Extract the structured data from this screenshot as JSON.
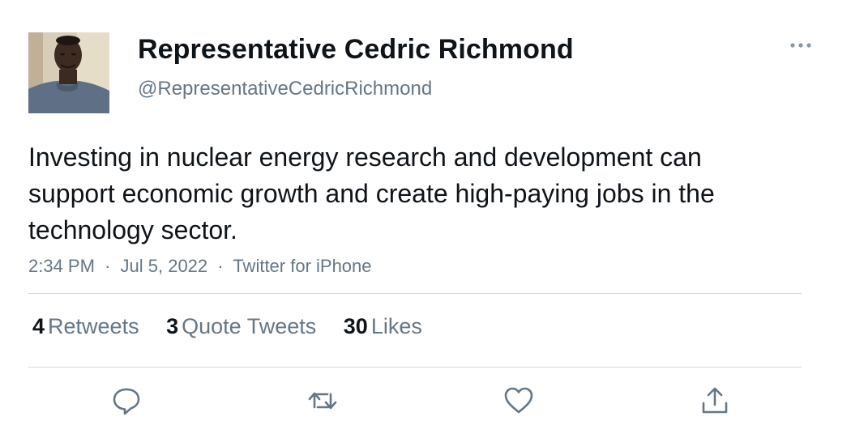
{
  "tweet": {
    "author": {
      "display_name": "Representative Cedric Richmond",
      "handle": "@RepresentativeCedricRichmond"
    },
    "text": "Investing in nuclear energy research and development can support economic growth and create high-paying jobs in the technology sector.",
    "time": "2:34 PM",
    "date": "Jul 5, 2022",
    "source": "Twitter for iPhone",
    "separator": "·"
  },
  "stats": {
    "retweets": {
      "count": "4",
      "label": "Retweets"
    },
    "quote_tweets": {
      "count": "3",
      "label": "Quote Tweets"
    },
    "likes": {
      "count": "30",
      "label": "Likes"
    }
  },
  "actions": [
    "reply-icon",
    "retweet-icon",
    "like-icon",
    "share-icon"
  ],
  "more_icon": "more-horizontal-icon",
  "colors": {
    "text": "#0f1419",
    "secondary": "#657786",
    "divider": "#cfd9de"
  }
}
